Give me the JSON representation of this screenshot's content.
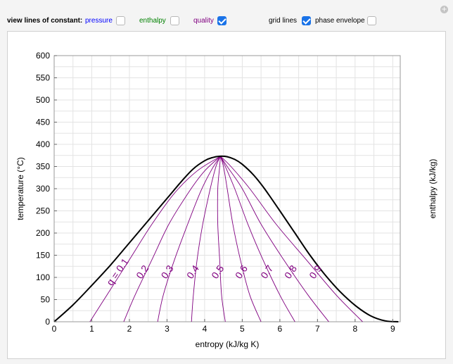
{
  "controls": {
    "view_lines_label": "view lines of constant:",
    "pressure": {
      "label": "pressure",
      "checked": false,
      "color": "#0000ff"
    },
    "enthalpy": {
      "label": "enthalpy",
      "checked": false,
      "color": "#008000"
    },
    "quality": {
      "label": "quality",
      "checked": true,
      "color": "#800080"
    },
    "grid_lines": {
      "label": "grid lines",
      "checked": true
    },
    "phase_envelope": {
      "label": "phase envelope",
      "checked": false
    }
  },
  "chart_data": {
    "type": "line",
    "xlabel": "entropy (kJ/kg K)",
    "ylabel": "temperature (°C)",
    "ylabel_right": "enthalpy (kJ/kg)",
    "xlim": [
      0,
      9.2
    ],
    "ylim": [
      0,
      600
    ],
    "xticks": [
      0,
      1,
      2,
      3,
      4,
      5,
      6,
      7,
      8,
      9
    ],
    "yticks": [
      0,
      50,
      100,
      150,
      200,
      250,
      300,
      350,
      400,
      450,
      500,
      550,
      600
    ],
    "grid": true,
    "dome": {
      "color": "#000000",
      "points": [
        [
          0.0,
          0
        ],
        [
          0.5,
          38
        ],
        [
          1.0,
          82
        ],
        [
          1.5,
          128
        ],
        [
          2.0,
          178
        ],
        [
          2.5,
          228
        ],
        [
          3.0,
          278
        ],
        [
          3.4,
          318
        ],
        [
          3.7,
          345
        ],
        [
          4.0,
          363
        ],
        [
          4.2,
          370
        ],
        [
          4.4,
          373
        ],
        [
          4.6,
          372
        ],
        [
          4.8,
          366
        ],
        [
          5.0,
          355
        ],
        [
          5.3,
          331
        ],
        [
          5.6,
          299
        ],
        [
          6.0,
          250
        ],
        [
          6.4,
          200
        ],
        [
          6.8,
          150
        ],
        [
          7.2,
          106
        ],
        [
          7.6,
          68
        ],
        [
          8.0,
          37
        ],
        [
          8.4,
          14
        ],
        [
          8.8,
          2
        ],
        [
          9.15,
          0
        ]
      ]
    },
    "quality_lines": {
      "color": "#800080",
      "critical_point": [
        4.42,
        373
      ],
      "lines": [
        {
          "q": 0.1,
          "label": "q = 0.1",
          "points": [
            [
              0.95,
              0
            ],
            [
              1.4,
              60
            ],
            [
              2.0,
              140
            ],
            [
              2.6,
              220
            ],
            [
              3.2,
              290
            ],
            [
              3.8,
              340
            ],
            [
              4.42,
              373
            ]
          ]
        },
        {
          "q": 0.2,
          "label": "0.2",
          "points": [
            [
              1.85,
              0
            ],
            [
              2.15,
              60
            ],
            [
              2.6,
              140
            ],
            [
              3.05,
              220
            ],
            [
              3.6,
              295
            ],
            [
              4.0,
              340
            ],
            [
              4.42,
              373
            ]
          ]
        },
        {
          "q": 0.3,
          "label": "0.3",
          "points": [
            [
              2.75,
              0
            ],
            [
              2.9,
              60
            ],
            [
              3.2,
              140
            ],
            [
              3.55,
              220
            ],
            [
              3.9,
              295
            ],
            [
              4.2,
              345
            ],
            [
              4.42,
              373
            ]
          ]
        },
        {
          "q": 0.4,
          "label": "0.4",
          "points": [
            [
              3.65,
              0
            ],
            [
              3.7,
              60
            ],
            [
              3.8,
              140
            ],
            [
              3.95,
              220
            ],
            [
              4.15,
              300
            ],
            [
              4.3,
              350
            ],
            [
              4.42,
              373
            ]
          ]
        },
        {
          "q": 0.5,
          "label": "0.5",
          "points": [
            [
              4.55,
              0
            ],
            [
              4.45,
              60
            ],
            [
              4.4,
              140
            ],
            [
              4.35,
              220
            ],
            [
              4.35,
              300
            ],
            [
              4.4,
              350
            ],
            [
              4.42,
              373
            ]
          ]
        },
        {
          "q": 0.6,
          "label": "0.6",
          "points": [
            [
              5.5,
              0
            ],
            [
              5.2,
              60
            ],
            [
              4.95,
              140
            ],
            [
              4.75,
              220
            ],
            [
              4.6,
              300
            ],
            [
              4.5,
              350
            ],
            [
              4.42,
              373
            ]
          ]
        },
        {
          "q": 0.7,
          "label": "0.7",
          "points": [
            [
              6.4,
              0
            ],
            [
              6.0,
              60
            ],
            [
              5.55,
              140
            ],
            [
              5.15,
              220
            ],
            [
              4.8,
              300
            ],
            [
              4.55,
              350
            ],
            [
              4.42,
              373
            ]
          ]
        },
        {
          "q": 0.8,
          "label": "0.8",
          "points": [
            [
              7.3,
              0
            ],
            [
              6.75,
              60
            ],
            [
              6.1,
              140
            ],
            [
              5.5,
              220
            ],
            [
              5.0,
              300
            ],
            [
              4.6,
              350
            ],
            [
              4.42,
              373
            ]
          ]
        },
        {
          "q": 0.9,
          "label": "0.9",
          "points": [
            [
              8.2,
              0
            ],
            [
              7.5,
              60
            ],
            [
              6.7,
              140
            ],
            [
              5.9,
              220
            ],
            [
              5.2,
              300
            ],
            [
              4.7,
              350
            ],
            [
              4.42,
              373
            ]
          ]
        }
      ]
    }
  }
}
